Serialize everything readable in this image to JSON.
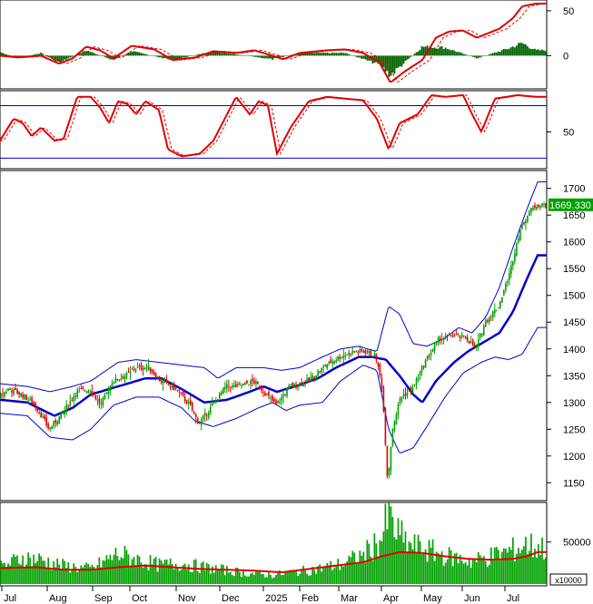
{
  "chart_data": [
    {
      "type": "histogram+line",
      "panel": "macd",
      "y_ticks": [
        50,
        0
      ],
      "ylim": [
        -35,
        60
      ],
      "colors": {
        "line": "#e00000",
        "signal": "#e00000",
        "hist": "#006400"
      },
      "macd_line_keys": [
        [
          0,
          0
        ],
        [
          20,
          -2
        ],
        [
          45,
          0
        ],
        [
          65,
          -9
        ],
        [
          80,
          -3
        ],
        [
          95,
          10
        ],
        [
          110,
          6
        ],
        [
          125,
          -3
        ],
        [
          145,
          11
        ],
        [
          170,
          7
        ],
        [
          190,
          -5
        ],
        [
          215,
          -2
        ],
        [
          235,
          5
        ],
        [
          260,
          3
        ],
        [
          280,
          6
        ],
        [
          300,
          0
        ],
        [
          312,
          -4
        ],
        [
          330,
          3
        ],
        [
          360,
          6
        ],
        [
          380,
          7
        ],
        [
          400,
          3
        ],
        [
          418,
          -8
        ],
        [
          430,
          -30
        ],
        [
          445,
          -18
        ],
        [
          465,
          -5
        ],
        [
          480,
          20
        ],
        [
          495,
          27
        ],
        [
          510,
          28
        ],
        [
          525,
          20
        ],
        [
          550,
          30
        ],
        [
          565,
          42
        ],
        [
          575,
          55
        ],
        [
          590,
          58
        ]
      ],
      "histogram_keys": [
        [
          0,
          4
        ],
        [
          20,
          -3
        ],
        [
          45,
          3
        ],
        [
          65,
          -8
        ],
        [
          95,
          6
        ],
        [
          125,
          -5
        ],
        [
          145,
          5
        ],
        [
          190,
          -5
        ],
        [
          235,
          5
        ],
        [
          300,
          -4
        ],
        [
          330,
          3
        ],
        [
          380,
          3
        ],
        [
          418,
          -10
        ],
        [
          430,
          -22
        ],
        [
          465,
          10
        ],
        [
          490,
          9
        ],
        [
          525,
          -3
        ],
        [
          560,
          8
        ],
        [
          575,
          14
        ],
        [
          590,
          6
        ]
      ]
    },
    {
      "type": "line",
      "panel": "rsi",
      "y_ticks": [
        50
      ],
      "ylim": [
        10,
        95
      ],
      "levels": [
        80,
        20
      ],
      "colors": {
        "line": "#e00000",
        "levels": "#0000cc"
      },
      "rsi_keys": [
        [
          0,
          40
        ],
        [
          15,
          65
        ],
        [
          25,
          60
        ],
        [
          35,
          45
        ],
        [
          45,
          55
        ],
        [
          60,
          40
        ],
        [
          70,
          42
        ],
        [
          85,
          90
        ],
        [
          100,
          90
        ],
        [
          110,
          78
        ],
        [
          120,
          60
        ],
        [
          130,
          85
        ],
        [
          140,
          82
        ],
        [
          150,
          70
        ],
        [
          160,
          85
        ],
        [
          175,
          75
        ],
        [
          185,
          30
        ],
        [
          200,
          22
        ],
        [
          220,
          25
        ],
        [
          235,
          40
        ],
        [
          250,
          70
        ],
        [
          260,
          90
        ],
        [
          275,
          70
        ],
        [
          285,
          85
        ],
        [
          295,
          80
        ],
        [
          305,
          25
        ],
        [
          320,
          55
        ],
        [
          340,
          85
        ],
        [
          360,
          90
        ],
        [
          380,
          88
        ],
        [
          400,
          86
        ],
        [
          415,
          65
        ],
        [
          428,
          30
        ],
        [
          440,
          60
        ],
        [
          460,
          70
        ],
        [
          475,
          92
        ],
        [
          490,
          90
        ],
        [
          510,
          92
        ],
        [
          520,
          70
        ],
        [
          530,
          50
        ],
        [
          545,
          88
        ],
        [
          570,
          92
        ],
        [
          590,
          90
        ]
      ]
    },
    {
      "type": "candlestick",
      "panel": "price",
      "y_ticks": [
        1700,
        1650,
        1600,
        1550,
        1500,
        1450,
        1400,
        1350,
        1300,
        1250,
        1200,
        1150
      ],
      "ylim": [
        1120,
        1730
      ],
      "last_price_label": "1669.330",
      "colors": {
        "up": "#00a000",
        "down": "#e00000",
        "ma": "#0000cc",
        "bands": "#0000cc"
      },
      "close_keys": [
        [
          0,
          1310
        ],
        [
          10,
          1325
        ],
        [
          25,
          1315
        ],
        [
          40,
          1295
        ],
        [
          55,
          1250
        ],
        [
          70,
          1280
        ],
        [
          85,
          1320
        ],
        [
          100,
          1325
        ],
        [
          112,
          1295
        ],
        [
          125,
          1340
        ],
        [
          140,
          1350
        ],
        [
          150,
          1365
        ],
        [
          165,
          1365
        ],
        [
          178,
          1340
        ],
        [
          195,
          1325
        ],
        [
          210,
          1295
        ],
        [
          220,
          1260
        ],
        [
          235,
          1295
        ],
        [
          250,
          1330
        ],
        [
          265,
          1330
        ],
        [
          280,
          1340
        ],
        [
          292,
          1320
        ],
        [
          305,
          1295
        ],
        [
          320,
          1330
        ],
        [
          340,
          1340
        ],
        [
          360,
          1370
        ],
        [
          375,
          1385
        ],
        [
          390,
          1395
        ],
        [
          405,
          1395
        ],
        [
          415,
          1385
        ],
        [
          422,
          1325
        ],
        [
          428,
          1150
        ],
        [
          433,
          1250
        ],
        [
          442,
          1310
        ],
        [
          455,
          1325
        ],
        [
          470,
          1380
        ],
        [
          485,
          1420
        ],
        [
          500,
          1425
        ],
        [
          515,
          1420
        ],
        [
          525,
          1400
        ],
        [
          535,
          1450
        ],
        [
          550,
          1480
        ],
        [
          562,
          1540
        ],
        [
          573,
          1620
        ],
        [
          583,
          1655
        ],
        [
          592,
          1669.33
        ]
      ],
      "ma_keys": [
        [
          0,
          1305
        ],
        [
          30,
          1300
        ],
        [
          60,
          1275
        ],
        [
          80,
          1290
        ],
        [
          100,
          1315
        ],
        [
          130,
          1330
        ],
        [
          160,
          1345
        ],
        [
          178,
          1345
        ],
        [
          200,
          1325
        ],
        [
          225,
          1300
        ],
        [
          250,
          1305
        ],
        [
          275,
          1320
        ],
        [
          290,
          1330
        ],
        [
          305,
          1320
        ],
        [
          325,
          1330
        ],
        [
          350,
          1345
        ],
        [
          370,
          1365
        ],
        [
          395,
          1385
        ],
        [
          410,
          1385
        ],
        [
          425,
          1380
        ],
        [
          440,
          1350
        ],
        [
          455,
          1315
        ],
        [
          465,
          1300
        ],
        [
          480,
          1340
        ],
        [
          500,
          1375
        ],
        [
          515,
          1395
        ],
        [
          530,
          1410
        ],
        [
          550,
          1430
        ],
        [
          565,
          1470
        ],
        [
          580,
          1530
        ],
        [
          592,
          1575
        ]
      ],
      "upper_band_keys": [
        [
          0,
          1335
        ],
        [
          30,
          1330
        ],
        [
          55,
          1320
        ],
        [
          80,
          1330
        ],
        [
          100,
          1340
        ],
        [
          130,
          1375
        ],
        [
          150,
          1380
        ],
        [
          175,
          1375
        ],
        [
          200,
          1370
        ],
        [
          225,
          1365
        ],
        [
          240,
          1345
        ],
        [
          260,
          1365
        ],
        [
          290,
          1365
        ],
        [
          310,
          1360
        ],
        [
          330,
          1365
        ],
        [
          355,
          1385
        ],
        [
          375,
          1400
        ],
        [
          395,
          1405
        ],
        [
          415,
          1395
        ],
        [
          428,
          1480
        ],
        [
          440,
          1465
        ],
        [
          455,
          1410
        ],
        [
          470,
          1405
        ],
        [
          490,
          1420
        ],
        [
          505,
          1440
        ],
        [
          520,
          1430
        ],
        [
          535,
          1460
        ],
        [
          550,
          1515
        ],
        [
          565,
          1590
        ],
        [
          580,
          1660
        ],
        [
          592,
          1712
        ]
      ],
      "lower_band_keys": [
        [
          0,
          1280
        ],
        [
          30,
          1275
        ],
        [
          55,
          1235
        ],
        [
          80,
          1230
        ],
        [
          100,
          1250
        ],
        [
          125,
          1295
        ],
        [
          150,
          1310
        ],
        [
          175,
          1310
        ],
        [
          200,
          1290
        ],
        [
          215,
          1265
        ],
        [
          235,
          1255
        ],
        [
          260,
          1270
        ],
        [
          285,
          1290
        ],
        [
          300,
          1300
        ],
        [
          315,
          1285
        ],
        [
          330,
          1295
        ],
        [
          355,
          1300
        ],
        [
          375,
          1340
        ],
        [
          400,
          1370
        ],
        [
          415,
          1360
        ],
        [
          428,
          1250
        ],
        [
          440,
          1205
        ],
        [
          455,
          1215
        ],
        [
          470,
          1255
        ],
        [
          490,
          1310
        ],
        [
          510,
          1355
        ],
        [
          530,
          1375
        ],
        [
          545,
          1385
        ],
        [
          560,
          1380
        ],
        [
          575,
          1390
        ],
        [
          592,
          1440
        ]
      ]
    },
    {
      "type": "bar+line",
      "panel": "volume",
      "y_ticks": [
        50000
      ],
      "ylim": [
        0,
        95000
      ],
      "unit_label": "x10000",
      "colors": {
        "bar": "#00a000",
        "ma": "#e00000"
      },
      "volume_keys": [
        [
          0,
          22000
        ],
        [
          25,
          35000
        ],
        [
          45,
          32000
        ],
        [
          70,
          24000
        ],
        [
          100,
          20000
        ],
        [
          130,
          40000
        ],
        [
          150,
          33000
        ],
        [
          175,
          25000
        ],
        [
          200,
          27000
        ],
        [
          225,
          22000
        ],
        [
          250,
          18000
        ],
        [
          275,
          14000
        ],
        [
          300,
          12000
        ],
        [
          325,
          16000
        ],
        [
          350,
          20000
        ],
        [
          375,
          26000
        ],
        [
          400,
          38000
        ],
        [
          420,
          60000
        ],
        [
          428,
          90000
        ],
        [
          435,
          70000
        ],
        [
          450,
          52000
        ],
        [
          470,
          45000
        ],
        [
          495,
          36000
        ],
        [
          520,
          30000
        ],
        [
          545,
          38000
        ],
        [
          565,
          45000
        ],
        [
          580,
          52000
        ],
        [
          592,
          48000
        ]
      ],
      "volume_ma_keys": [
        [
          0,
          19000
        ],
        [
          40,
          20000
        ],
        [
          70,
          17000
        ],
        [
          100,
          17000
        ],
        [
          130,
          20000
        ],
        [
          160,
          22000
        ],
        [
          190,
          20000
        ],
        [
          220,
          18000
        ],
        [
          250,
          17000
        ],
        [
          280,
          16000
        ],
        [
          310,
          14000
        ],
        [
          340,
          18000
        ],
        [
          370,
          22000
        ],
        [
          400,
          26000
        ],
        [
          420,
          33000
        ],
        [
          440,
          38000
        ],
        [
          465,
          37000
        ],
        [
          490,
          33000
        ],
        [
          515,
          30000
        ],
        [
          540,
          29000
        ],
        [
          565,
          30000
        ],
        [
          580,
          33000
        ],
        [
          592,
          38000
        ]
      ]
    }
  ],
  "x_axis": {
    "ticks": [
      {
        "label": "Jul",
        "x": 2
      },
      {
        "label": "Aug",
        "x": 52
      },
      {
        "label": "Sep",
        "x": 102
      },
      {
        "label": "Oct",
        "x": 143
      },
      {
        "label": "Nov",
        "x": 194
      },
      {
        "label": "Dec",
        "x": 242
      },
      {
        "label": "2025",
        "x": 290
      },
      {
        "label": "Feb",
        "x": 330
      },
      {
        "label": "Mar",
        "x": 373
      },
      {
        "label": "Apr",
        "x": 420
      },
      {
        "label": "May",
        "x": 464
      },
      {
        "label": "Jun",
        "x": 509
      },
      {
        "label": "Jul",
        "x": 556
      }
    ]
  }
}
